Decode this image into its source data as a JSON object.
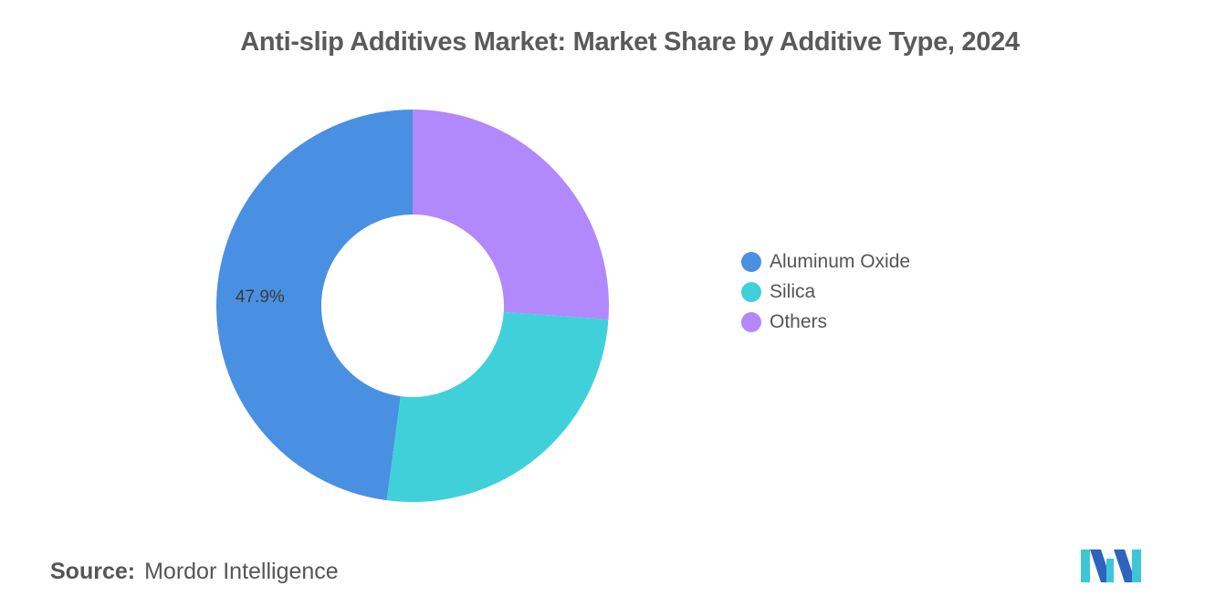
{
  "title": "Anti-slip Additives Market: Market Share by Additive Type, 2024",
  "source": {
    "label": "Source:",
    "value": "Mordor Intelligence"
  },
  "logo": {
    "icon": "mordor-intelligence-logo-icon",
    "colors": [
      "#3fc6d6",
      "#2f63c0"
    ]
  },
  "chart_data": {
    "type": "pie",
    "style": "donut",
    "legend_position": "right",
    "categories": [
      "Aluminum Oxide",
      "Silica",
      "Others"
    ],
    "values": [
      47.9,
      26.0,
      26.1
    ],
    "colors": [
      "#4a90e2",
      "#40d0da",
      "#b288fd"
    ],
    "data_labels": [
      "47.9%",
      "",
      ""
    ]
  }
}
